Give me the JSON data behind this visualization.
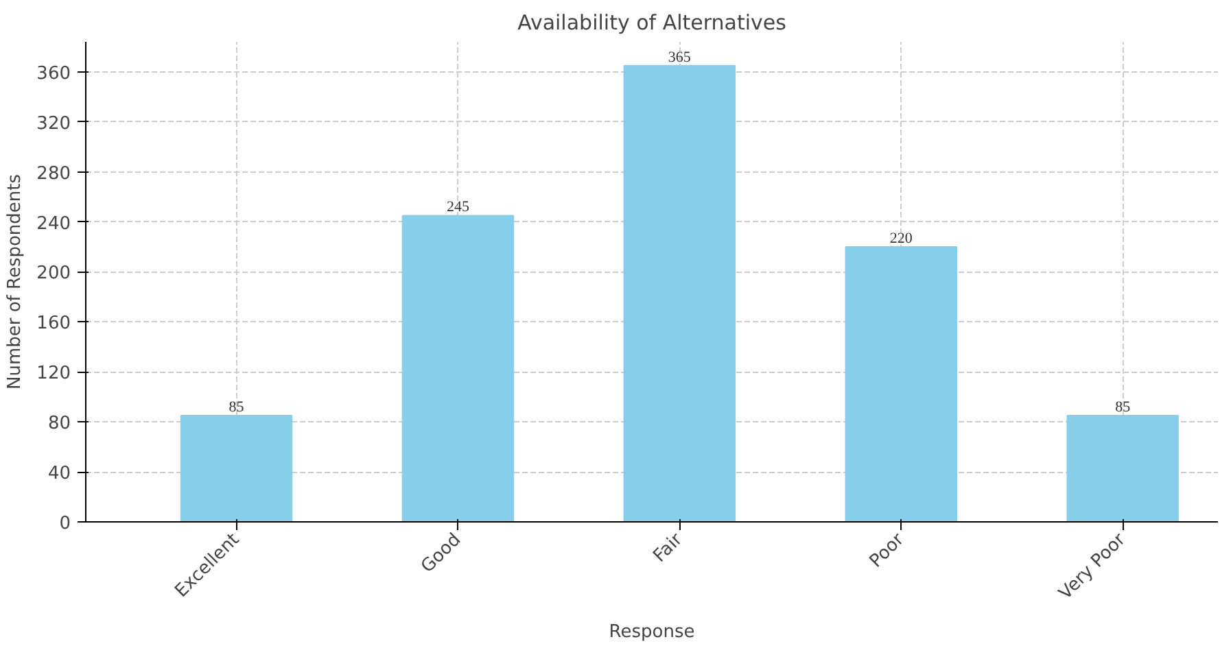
{
  "chart_data": {
    "type": "bar",
    "title": "Availability of Alternatives",
    "xlabel": "Response",
    "ylabel": "Number of Respondents",
    "categories": [
      "Excellent",
      "Good",
      "Fair",
      "Poor",
      "Very Poor"
    ],
    "values": [
      85,
      245,
      365,
      220,
      85
    ],
    "color": "#87ceeb",
    "ylim": [
      0,
      384
    ],
    "yticks": [
      0,
      40,
      80,
      120,
      160,
      200,
      240,
      280,
      320,
      360
    ],
    "grid": true,
    "data_labels": true
  }
}
